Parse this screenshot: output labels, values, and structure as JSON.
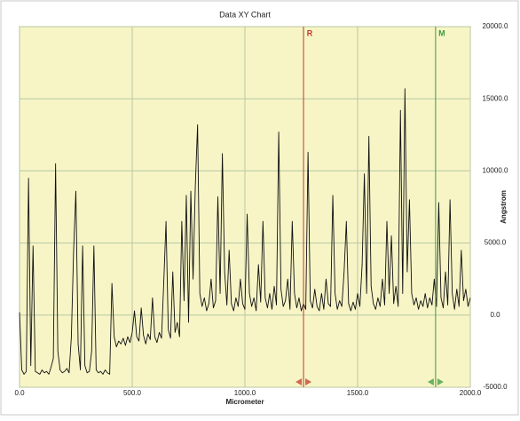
{
  "chart_data": {
    "type": "line",
    "title": "Data XY Chart",
    "x_label": "Micrometer",
    "y_label": "Angstrom",
    "color": "#111111",
    "background": "#f7f5c6",
    "grid": true,
    "y_axis_side": "right",
    "xlim": [
      0,
      2000
    ],
    "ylim": [
      -5000,
      20000
    ],
    "xticks": [
      {
        "value": 0,
        "label": "0.0"
      },
      {
        "value": 500,
        "label": "500.0"
      },
      {
        "value": 1000,
        "label": "1000.0"
      },
      {
        "value": 1500,
        "label": "1500.0"
      },
      {
        "value": 2000,
        "label": "2000.0"
      }
    ],
    "yticks": [
      {
        "value": -5000,
        "label": "-5000.0"
      },
      {
        "value": 0,
        "label": "0.0"
      },
      {
        "value": 5000,
        "label": "5000.0"
      },
      {
        "value": 10000,
        "label": "10000.0"
      },
      {
        "value": 15000,
        "label": "15000.0"
      },
      {
        "value": 20000,
        "label": "20000.0"
      }
    ],
    "cursors": [
      {
        "label": "R",
        "x": 1260,
        "color": "#c0392b"
      },
      {
        "label": "M",
        "x": 1846,
        "color": "#3c9a3c"
      }
    ],
    "x": [
      0,
      10,
      20,
      30,
      40,
      50,
      60,
      70,
      80,
      90,
      100,
      110,
      120,
      130,
      140,
      150,
      160,
      170,
      180,
      190,
      200,
      210,
      220,
      230,
      240,
      250,
      260,
      270,
      280,
      290,
      300,
      310,
      320,
      330,
      340,
      350,
      360,
      370,
      380,
      390,
      400,
      410,
      420,
      430,
      440,
      450,
      460,
      470,
      480,
      490,
      500,
      510,
      520,
      530,
      540,
      550,
      560,
      570,
      580,
      590,
      600,
      610,
      620,
      630,
      640,
      650,
      660,
      670,
      680,
      690,
      700,
      710,
      720,
      730,
      740,
      750,
      760,
      770,
      780,
      790,
      800,
      810,
      820,
      830,
      840,
      850,
      860,
      870,
      880,
      890,
      900,
      910,
      920,
      930,
      940,
      950,
      960,
      970,
      980,
      990,
      1000,
      1010,
      1020,
      1030,
      1040,
      1050,
      1060,
      1070,
      1080,
      1090,
      1100,
      1110,
      1120,
      1130,
      1140,
      1150,
      1160,
      1170,
      1180,
      1190,
      1200,
      1210,
      1220,
      1230,
      1240,
      1250,
      1260,
      1270,
      1280,
      1290,
      1300,
      1310,
      1320,
      1330,
      1340,
      1350,
      1360,
      1370,
      1380,
      1390,
      1400,
      1410,
      1420,
      1430,
      1440,
      1450,
      1460,
      1470,
      1480,
      1490,
      1500,
      1510,
      1520,
      1530,
      1540,
      1550,
      1560,
      1570,
      1580,
      1590,
      1600,
      1610,
      1620,
      1630,
      1640,
      1650,
      1660,
      1670,
      1680,
      1690,
      1700,
      1710,
      1720,
      1730,
      1740,
      1750,
      1760,
      1770,
      1780,
      1790,
      1800,
      1810,
      1820,
      1830,
      1840,
      1850,
      1860,
      1870,
      1880,
      1890,
      1900,
      1910,
      1920,
      1930,
      1940,
      1950,
      1960,
      1970,
      1980,
      1990,
      2000
    ],
    "values": [
      200,
      -3800,
      -4100,
      -3900,
      9500,
      -3500,
      4800,
      -3900,
      -4000,
      -4100,
      -3800,
      -4000,
      -3900,
      -4100,
      -3600,
      -3000,
      10500,
      -2500,
      -3800,
      -4000,
      -3900,
      -3700,
      -4000,
      -1500,
      4500,
      8600,
      -2000,
      -3800,
      4800,
      -3500,
      -4000,
      -3900,
      -2500,
      4800,
      -3800,
      -4000,
      -3900,
      -4100,
      -3800,
      -4000,
      -4100,
      2200,
      -1500,
      -2200,
      -1800,
      -2000,
      -1600,
      -2100,
      -1500,
      -1900,
      -1200,
      300,
      -1500,
      -1800,
      500,
      -1400,
      -2000,
      -1300,
      -1700,
      1200,
      -1500,
      -1900,
      -1200,
      -1600,
      2300,
      6500,
      -1000,
      -1600,
      3000,
      -1200,
      -500,
      -1500,
      6500,
      1000,
      8300,
      -500,
      8600,
      2500,
      9000,
      13200,
      1500,
      600,
      1200,
      300,
      800,
      2500,
      500,
      1000,
      8200,
      1500,
      11200,
      3000,
      700,
      4500,
      800,
      300,
      1200,
      600,
      2500,
      800,
      400,
      7000,
      1500,
      600,
      1200,
      300,
      3500,
      900,
      6500,
      1200,
      500,
      1500,
      400,
      2000,
      700,
      12700,
      1800,
      600,
      1000,
      2500,
      400,
      6500,
      1500,
      500,
      1200,
      300,
      800,
      400,
      11300,
      1000,
      500,
      1800,
      600,
      300,
      1500,
      400,
      2500,
      800,
      600,
      8300,
      1500,
      400,
      1000,
      600,
      3000,
      6500,
      800,
      300,
      900,
      400,
      1500,
      600,
      3500,
      9800,
      1500,
      12400,
      2000,
      800,
      400,
      1200,
      600,
      2500,
      700,
      6500,
      1500,
      5500,
      800,
      2000,
      600,
      14200,
      1500,
      15700,
      3000,
      8000,
      1500,
      700,
      1200,
      400,
      1000,
      600,
      1500,
      500,
      1200,
      700,
      2500,
      600,
      7800,
      1200,
      500,
      3000,
      700,
      8000,
      1500,
      400,
      1800,
      600,
      4500,
      1000,
      1800,
      600,
      1200
    ]
  }
}
